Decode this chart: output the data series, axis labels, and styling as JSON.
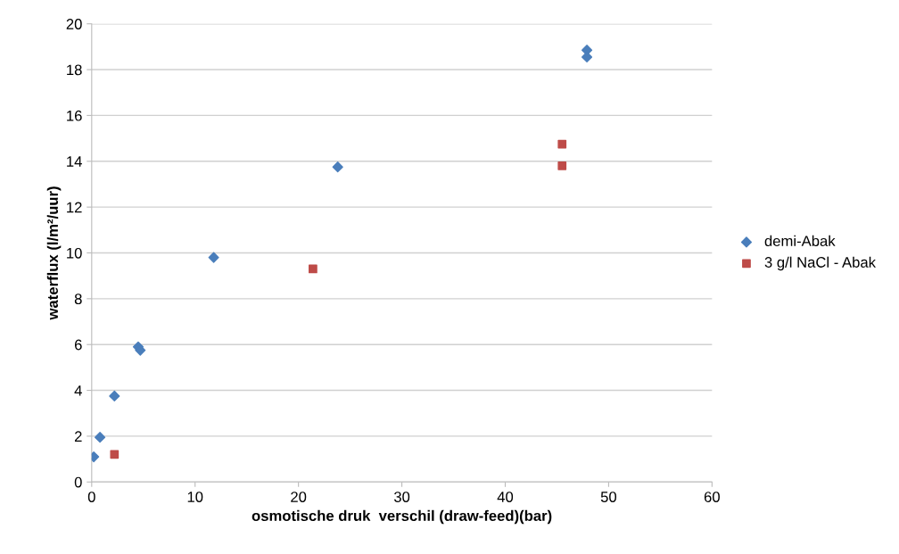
{
  "chart_data": {
    "type": "scatter",
    "xlabel": "osmotische druk  verschil (draw-feed)(bar)",
    "ylabel": "waterflux (l/m²/uur)",
    "xlim": [
      0,
      60
    ],
    "xticks": [
      0,
      10,
      20,
      30,
      40,
      50,
      60
    ],
    "ylim": [
      0,
      20
    ],
    "yticks": [
      0,
      2,
      4,
      6,
      8,
      10,
      12,
      14,
      16,
      18,
      20
    ],
    "grid": "y",
    "legend": "right",
    "series": [
      {
        "name": "demi-Abak",
        "color": "#4a7ebb",
        "marker": "diamond",
        "x": [
          0.2,
          0.8,
          2.2,
          4.5,
          4.7,
          11.8,
          23.8,
          47.9,
          47.9
        ],
        "values": [
          1.1,
          1.95,
          3.75,
          5.9,
          5.75,
          9.8,
          13.75,
          18.85,
          18.55
        ]
      },
      {
        "name": "3 g/l NaCl - Abak",
        "color": "#be4b48",
        "marker": "square",
        "x": [
          2.2,
          21.4,
          45.5,
          45.5
        ],
        "values": [
          1.2,
          9.3,
          14.75,
          13.8
        ]
      }
    ]
  }
}
